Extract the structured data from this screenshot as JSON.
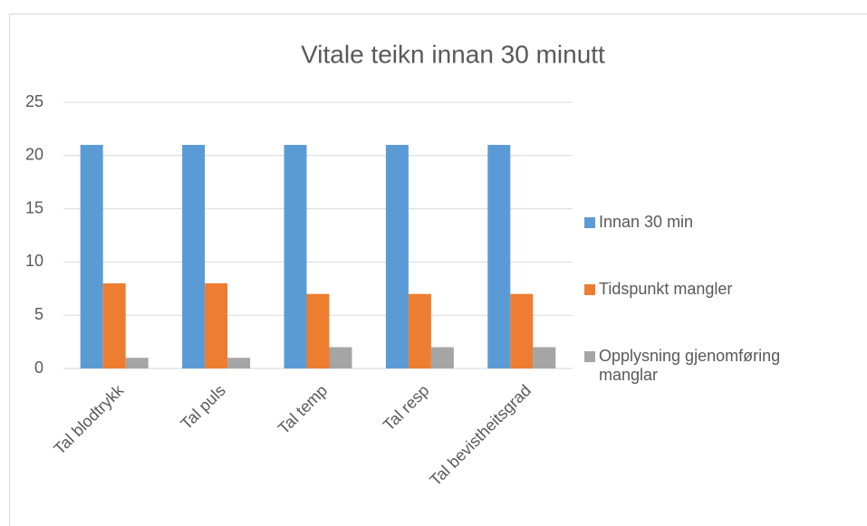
{
  "chart_data": {
    "type": "bar",
    "title": "Vitale teikn innan 30 minutt",
    "categories": [
      "Tal blodtrykk",
      "Tal puls",
      "Tal temp",
      "Tal resp",
      "Tal bevistheitsgrad"
    ],
    "series": [
      {
        "name": "Innan 30 min",
        "color": "#5b9bd5",
        "values": [
          21,
          21,
          21,
          21,
          21
        ]
      },
      {
        "name": "Tidspunkt mangler",
        "color": "#ed7d31",
        "values": [
          8,
          8,
          7,
          7,
          7
        ]
      },
      {
        "name": "Opplysning gjenomføring manglar",
        "color": "#a5a5a5",
        "values": [
          1,
          1,
          2,
          2,
          2
        ]
      }
    ],
    "ylim": [
      0,
      25
    ],
    "yticks": [
      0,
      5,
      10,
      15,
      20,
      25
    ],
    "grid": true,
    "legend": "right"
  }
}
